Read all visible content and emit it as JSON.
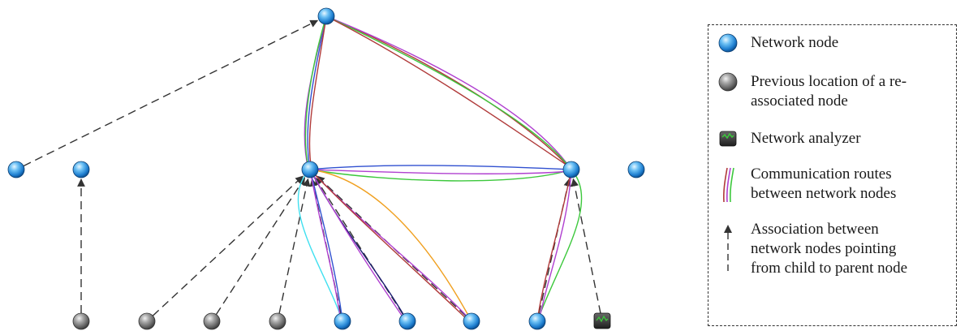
{
  "nodes": [
    {
      "id": "top",
      "kind": "network-node"
    },
    {
      "id": "mid-left",
      "kind": "network-node"
    },
    {
      "id": "mid-right",
      "kind": "network-node"
    },
    {
      "id": "far-left-1",
      "kind": "network-node"
    },
    {
      "id": "far-left-2",
      "kind": "network-node"
    },
    {
      "id": "far-right",
      "kind": "network-node"
    },
    {
      "id": "bottom-prev-1",
      "kind": "previous-location"
    },
    {
      "id": "bottom-prev-2",
      "kind": "previous-location"
    },
    {
      "id": "bottom-prev-3",
      "kind": "previous-location"
    },
    {
      "id": "bottom-prev-4",
      "kind": "previous-location"
    },
    {
      "id": "bottom-node-1",
      "kind": "network-node"
    },
    {
      "id": "bottom-node-2",
      "kind": "network-node"
    },
    {
      "id": "bottom-node-3",
      "kind": "network-node"
    },
    {
      "id": "bottom-node-4",
      "kind": "network-node"
    },
    {
      "id": "analyzer",
      "kind": "network-analyzer"
    }
  ],
  "associations": [
    {
      "from": "far-left-1",
      "to": "top"
    },
    {
      "from": "bottom-prev-1",
      "to": "far-left-2"
    },
    {
      "from": "bottom-prev-2",
      "to": "mid-left"
    },
    {
      "from": "bottom-prev-3",
      "to": "mid-left"
    },
    {
      "from": "bottom-prev-4",
      "to": "mid-left"
    },
    {
      "from": "bottom-node-1",
      "to": "mid-left"
    },
    {
      "from": "bottom-node-2",
      "to": "mid-left"
    },
    {
      "from": "bottom-node-3",
      "to": "mid-left"
    },
    {
      "from": "bottom-node-4",
      "to": "mid-right"
    },
    {
      "from": "analyzer",
      "to": "mid-right"
    }
  ],
  "route_colors": {
    "red": "#b03a3a",
    "green": "#3cc83c",
    "purple": "#b040d0",
    "blue": "#3050d0",
    "cyan": "#40e0f0",
    "orange": "#f0a020",
    "navy": "#1a1a70"
  },
  "legend": {
    "network_node": "Network node",
    "previous_location": "Previous location of a re-\nassociated node",
    "network_analyzer": "Network analyzer",
    "communication_routes": "Communication routes\nbetween network nodes",
    "association": "Association between\nnetwork nodes pointing\nfrom child to parent node"
  }
}
